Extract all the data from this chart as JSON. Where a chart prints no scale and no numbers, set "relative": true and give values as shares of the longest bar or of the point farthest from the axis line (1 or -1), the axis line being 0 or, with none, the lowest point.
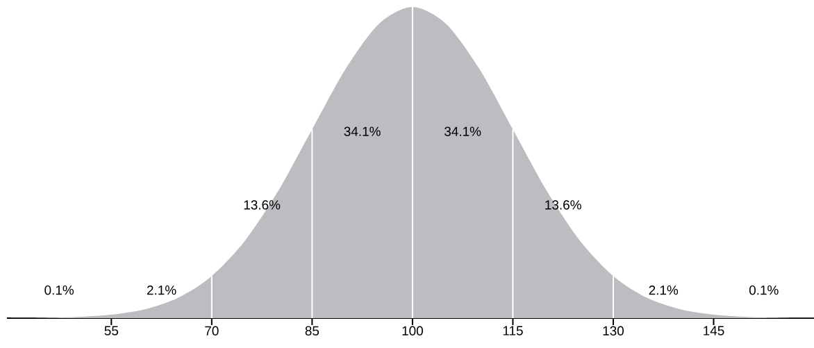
{
  "chart_data": {
    "type": "area",
    "relative": true,
    "color": "#bcbdc1",
    "x": [
      40,
      45,
      50,
      55,
      60,
      65,
      70,
      75,
      80,
      85,
      90,
      95,
      100,
      105,
      110,
      115,
      120,
      125,
      130,
      135,
      140,
      145,
      150,
      155,
      160
    ],
    "values": [
      0.0003,
      0.0012,
      0.0039,
      0.0111,
      0.0286,
      0.0657,
      0.1353,
      0.2494,
      0.4111,
      0.6065,
      0.8007,
      0.946,
      1,
      0.946,
      0.8007,
      0.6065,
      0.4111,
      0.2494,
      0.1353,
      0.0657,
      0.0286,
      0.0111,
      0.0039,
      0.0012,
      0.0003
    ],
    "xlim": [
      39.4,
      160
    ],
    "xticks": [
      55,
      70,
      85,
      100,
      115,
      130,
      145
    ],
    "ref_lines": [
      {
        "axis": "x",
        "value": 70,
        "color": "#ffffff"
      },
      {
        "axis": "x",
        "value": 85,
        "color": "#ffffff"
      },
      {
        "axis": "x",
        "value": 100,
        "color": "#ffffff"
      },
      {
        "axis": "x",
        "value": 115,
        "color": "#ffffff"
      },
      {
        "axis": "x",
        "value": 130,
        "color": "#ffffff"
      }
    ],
    "annotations": [
      "0.1%",
      "2.1%",
      "13.6%",
      "34.1%",
      "34.1%",
      "13.6%",
      "2.1%",
      "0.1%"
    ]
  }
}
